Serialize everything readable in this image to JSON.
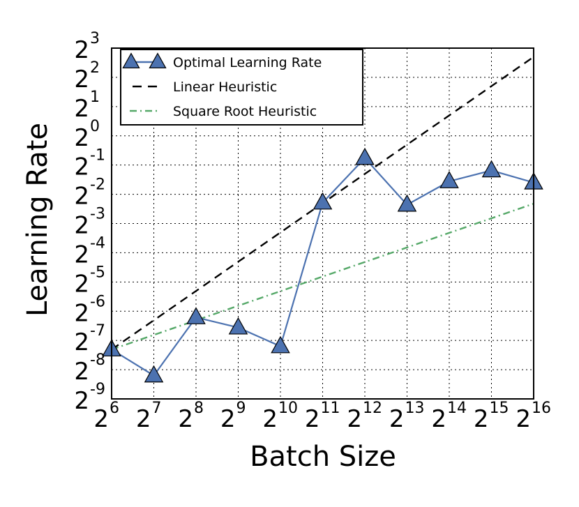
{
  "chart_data": {
    "type": "line",
    "xlabel": "Batch Size",
    "ylabel": "Learning Rate",
    "x_scale": "log2",
    "y_scale": "log2",
    "xlim": [
      64,
      65536
    ],
    "ylim": [
      0.001953125,
      8
    ],
    "grid": true,
    "legend_position": "top-left",
    "x_ticks": [
      {
        "base": "2",
        "exp": "6"
      },
      {
        "base": "2",
        "exp": "7"
      },
      {
        "base": "2",
        "exp": "8"
      },
      {
        "base": "2",
        "exp": "9"
      },
      {
        "base": "2",
        "exp": "10"
      },
      {
        "base": "2",
        "exp": "11"
      },
      {
        "base": "2",
        "exp": "12"
      },
      {
        "base": "2",
        "exp": "13"
      },
      {
        "base": "2",
        "exp": "14"
      },
      {
        "base": "2",
        "exp": "15"
      },
      {
        "base": "2",
        "exp": "16"
      }
    ],
    "y_ticks": [
      {
        "base": "2",
        "exp": "-9"
      },
      {
        "base": "2",
        "exp": "-8"
      },
      {
        "base": "2",
        "exp": "-7"
      },
      {
        "base": "2",
        "exp": "-6"
      },
      {
        "base": "2",
        "exp": "-5"
      },
      {
        "base": "2",
        "exp": "-4"
      },
      {
        "base": "2",
        "exp": "-3"
      },
      {
        "base": "2",
        "exp": "-2"
      },
      {
        "base": "2",
        "exp": "-1"
      },
      {
        "base": "2",
        "exp": "0"
      },
      {
        "base": "2",
        "exp": "1"
      },
      {
        "base": "2",
        "exp": "2"
      },
      {
        "base": "2",
        "exp": "3"
      }
    ],
    "series": [
      {
        "name": "Optimal Learning Rate",
        "style": "solid-triangle",
        "color": "#4c72b0",
        "x": [
          64,
          128,
          256,
          512,
          1024,
          2048,
          4096,
          8192,
          16384,
          32768,
          65536
        ],
        "y": [
          0.0063,
          0.0034,
          0.0135,
          0.0106,
          0.0068,
          0.205,
          0.59,
          0.195,
          0.34,
          0.44,
          0.33
        ]
      },
      {
        "name": "Linear Heuristic",
        "style": "dashed",
        "color": "#000000",
        "x": [
          64,
          65536
        ],
        "y": [
          0.0063,
          6.5
        ]
      },
      {
        "name": "Square Root Heuristic",
        "style": "dash-dot",
        "color": "#55a868",
        "x": [
          64,
          65536
        ],
        "y": [
          0.0063,
          0.2
        ]
      }
    ]
  }
}
